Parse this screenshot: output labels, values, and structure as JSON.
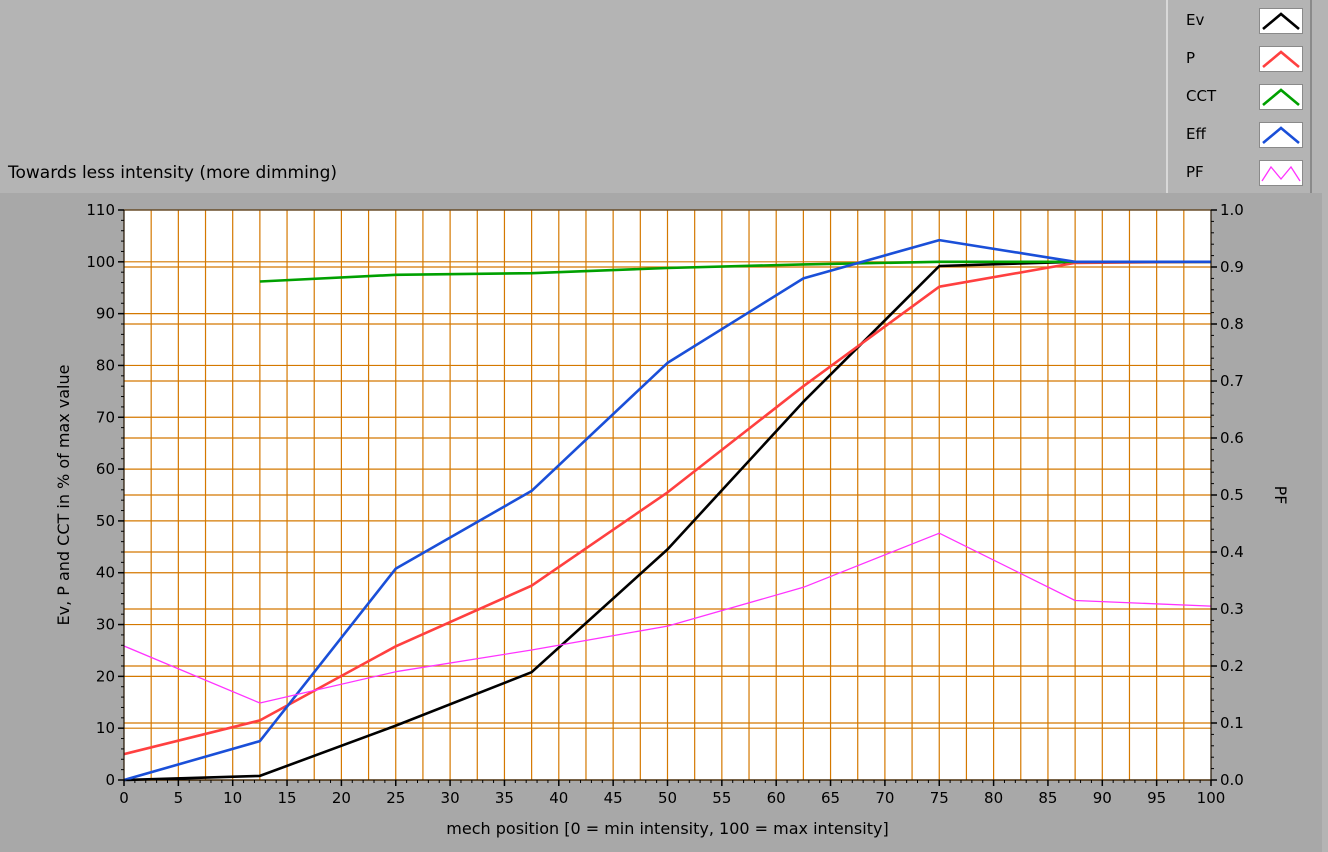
{
  "chart_title": "Towards less intensity (more dimming)",
  "legend": [
    {
      "label": "Ev",
      "color": "#000000",
      "style": "thick"
    },
    {
      "label": "P",
      "color": "#ff4040",
      "style": "thick"
    },
    {
      "label": "CCT",
      "color": "#00a000",
      "style": "thick"
    },
    {
      "label": "Eff",
      "color": "#1a4fd8",
      "style": "thick"
    },
    {
      "label": "PF",
      "color": "#ff33ff",
      "style": "thin"
    }
  ],
  "chart_data": {
    "type": "line",
    "title": "Towards less intensity (more dimming)",
    "xlabel": "mech position [0 = min intensity, 100 = max intensity]",
    "ylabel": "Ev, P and CCT in % of max value",
    "y2label": "PF",
    "xlim": [
      0,
      100
    ],
    "ylim": [
      0,
      110
    ],
    "y2lim": [
      0,
      1.0
    ],
    "xticks": [
      0,
      5,
      10,
      15,
      20,
      25,
      30,
      35,
      40,
      45,
      50,
      55,
      60,
      65,
      70,
      75,
      80,
      85,
      90,
      95,
      100
    ],
    "yticks": [
      0,
      10,
      20,
      30,
      40,
      50,
      60,
      70,
      80,
      90,
      100,
      110
    ],
    "y2ticks": [
      "0.0",
      "0.1",
      "0.2",
      "0.3",
      "0.4",
      "0.5",
      "0.6",
      "0.7",
      "0.8",
      "0.9",
      "1.0"
    ],
    "grid": true,
    "series": [
      {
        "name": "Ev",
        "axis": "left",
        "color": "#000000",
        "x": [
          0,
          12.5,
          25,
          37.5,
          50,
          62.5,
          75,
          87.5,
          100
        ],
        "values": [
          0,
          0.8,
          10.5,
          20.8,
          44.5,
          73,
          99.2,
          100,
          100
        ]
      },
      {
        "name": "P",
        "axis": "left",
        "color": "#ff4040",
        "x": [
          0,
          12.5,
          25,
          37.5,
          50,
          62.5,
          75,
          87.5,
          100
        ],
        "values": [
          5,
          11.5,
          25.8,
          37.5,
          55.5,
          76,
          95.2,
          99.8,
          100
        ]
      },
      {
        "name": "CCT",
        "axis": "left",
        "color": "#00a000",
        "x": [
          12.5,
          25,
          37.5,
          50,
          62.5,
          75,
          87.5,
          100
        ],
        "values": [
          96.2,
          97.5,
          97.8,
          98.8,
          99.5,
          100,
          100,
          100
        ]
      },
      {
        "name": "Eff",
        "axis": "left",
        "color": "#1a4fd8",
        "x": [
          0,
          12.5,
          25,
          37.5,
          50,
          62.5,
          75,
          87.5,
          100
        ],
        "values": [
          0,
          7.5,
          40.8,
          55.8,
          80.5,
          96.8,
          104.2,
          100,
          100
        ]
      },
      {
        "name": "PF",
        "axis": "right",
        "color": "#ff33ff",
        "x": [
          0,
          12.5,
          25,
          37.5,
          50,
          62.5,
          75,
          87.5,
          100
        ],
        "values": [
          0.235,
          0.135,
          0.19,
          0.228,
          0.27,
          0.338,
          0.433,
          0.315,
          0.305
        ]
      }
    ]
  }
}
